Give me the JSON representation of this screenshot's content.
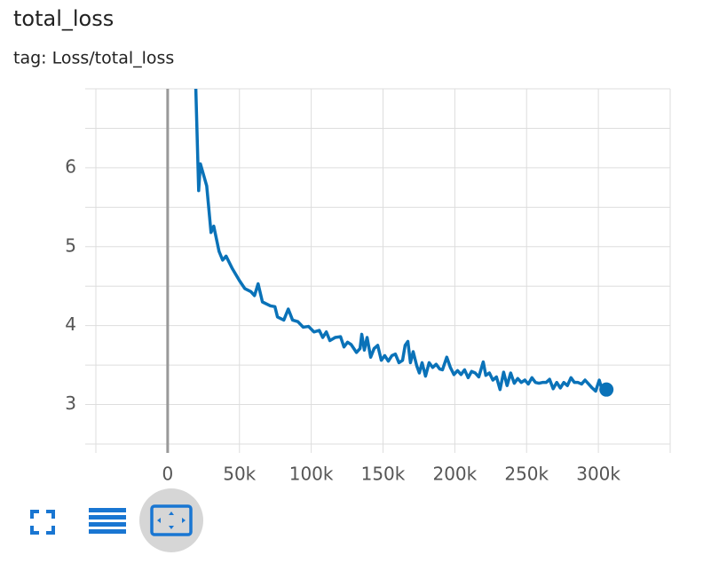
{
  "chart_data": {
    "type": "line",
    "title": "total_loss",
    "subtitle": "tag: Loss/total_loss",
    "x": [
      19000,
      21600,
      22800,
      27200,
      30200,
      32100,
      35800,
      38300,
      40700,
      45100,
      50000,
      53700,
      58000,
      60500,
      63000,
      66000,
      71600,
      74700,
      76500,
      80900,
      84000,
      87000,
      90700,
      94400,
      98100,
      101900,
      105600,
      108000,
      110500,
      113000,
      116700,
      120400,
      122800,
      125300,
      127800,
      131500,
      134000,
      135200,
      137000,
      138900,
      141400,
      143800,
      146300,
      148800,
      151200,
      153700,
      156200,
      158600,
      161100,
      163600,
      165400,
      167300,
      169100,
      171000,
      173500,
      175300,
      177200,
      179600,
      182100,
      184600,
      187000,
      189500,
      191400,
      194400,
      196900,
      199400,
      201900,
      204300,
      206800,
      209300,
      211700,
      214200,
      216700,
      219800,
      221600,
      224100,
      226500,
      229000,
      231500,
      234000,
      236400,
      238900,
      241400,
      243800,
      246300,
      248800,
      251200,
      253700,
      256200,
      258600,
      261100,
      263600,
      266000,
      268500,
      271000,
      273500,
      275900,
      278400,
      280900,
      283300,
      285800,
      288300,
      290700,
      293200,
      295700,
      298100,
      300600,
      302500,
      305600
    ],
    "series": [
      {
        "name": "total_loss",
        "color": "#0a72b8",
        "values": [
          7.4,
          5.71,
          6.05,
          5.77,
          5.18,
          5.26,
          4.94,
          4.83,
          4.88,
          4.72,
          4.57,
          4.47,
          4.43,
          4.38,
          4.53,
          4.3,
          4.25,
          4.24,
          4.11,
          4.07,
          4.21,
          4.07,
          4.05,
          3.98,
          3.99,
          3.92,
          3.94,
          3.85,
          3.92,
          3.81,
          3.85,
          3.86,
          3.73,
          3.79,
          3.76,
          3.66,
          3.71,
          3.89,
          3.69,
          3.85,
          3.6,
          3.71,
          3.75,
          3.56,
          3.62,
          3.55,
          3.62,
          3.64,
          3.53,
          3.56,
          3.75,
          3.8,
          3.53,
          3.67,
          3.49,
          3.4,
          3.53,
          3.36,
          3.53,
          3.47,
          3.51,
          3.45,
          3.44,
          3.6,
          3.47,
          3.38,
          3.43,
          3.38,
          3.44,
          3.34,
          3.42,
          3.4,
          3.35,
          3.54,
          3.37,
          3.4,
          3.31,
          3.35,
          3.19,
          3.41,
          3.24,
          3.4,
          3.27,
          3.33,
          3.28,
          3.31,
          3.26,
          3.34,
          3.28,
          3.27,
          3.28,
          3.28,
          3.32,
          3.2,
          3.28,
          3.21,
          3.28,
          3.24,
          3.34,
          3.28,
          3.28,
          3.26,
          3.31,
          3.26,
          3.21,
          3.17,
          3.31,
          3.19,
          3.19
        ]
      }
    ],
    "xlim": [
      -50000,
      350000
    ],
    "xticks": [
      {
        "value": 0,
        "label": "0"
      },
      {
        "value": 50000,
        "label": "50k"
      },
      {
        "value": 100000,
        "label": "100k"
      },
      {
        "value": 150000,
        "label": "150k"
      },
      {
        "value": 200000,
        "label": "200k"
      },
      {
        "value": 250000,
        "label": "250k"
      },
      {
        "value": 300000,
        "label": "300k"
      }
    ],
    "ylim": [
      2.5,
      7
    ],
    "yticks": [
      3,
      4,
      5,
      6
    ],
    "y_minor_grid": [
      3.5,
      4.5,
      5.5,
      6.5
    ],
    "grid": true
  }
}
